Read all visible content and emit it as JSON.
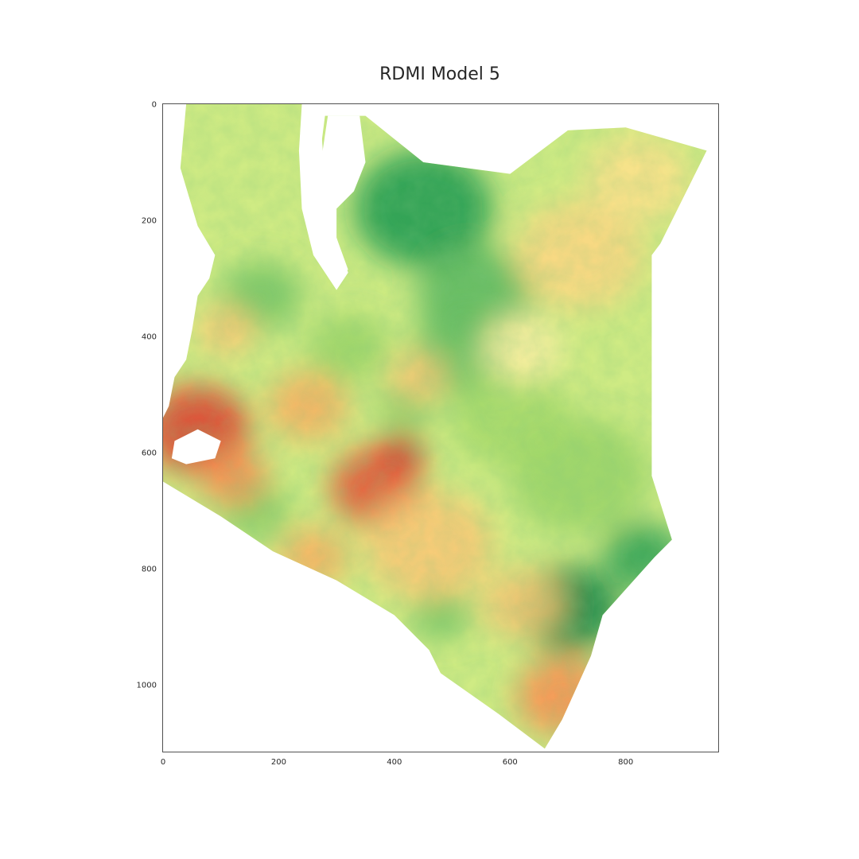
{
  "chart_data": {
    "type": "heatmap",
    "title": "RDMI Model 5",
    "xlabel": "",
    "ylabel": "",
    "xlim": [
      0,
      960
    ],
    "ylim": [
      1115,
      0
    ],
    "x_ticks": [
      0,
      200,
      400,
      600,
      800
    ],
    "y_ticks": [
      0,
      200,
      400,
      600,
      800,
      1000
    ],
    "grid": false,
    "colormap": "RdYlGn",
    "colormap_stops": [
      "#a50026",
      "#d73027",
      "#f46d43",
      "#fdae61",
      "#fee08b",
      "#ffffbf",
      "#d9ef8b",
      "#a6d96a",
      "#66bd63",
      "#1a9850",
      "#006837"
    ],
    "region_outline": [
      [
        0,
        540
      ],
      [
        10,
        520
      ],
      [
        20,
        470
      ],
      [
        40,
        440
      ],
      [
        50,
        390
      ],
      [
        60,
        330
      ],
      [
        80,
        300
      ],
      [
        90,
        260
      ],
      [
        60,
        210
      ],
      [
        30,
        110
      ],
      [
        35,
        55
      ],
      [
        40,
        0
      ],
      [
        240,
        0
      ],
      [
        235,
        80
      ],
      [
        240,
        180
      ],
      [
        260,
        260
      ],
      [
        300,
        320
      ],
      [
        320,
        290
      ],
      [
        300,
        230
      ],
      [
        280,
        140
      ],
      [
        275,
        60
      ],
      [
        280,
        20
      ],
      [
        350,
        20
      ],
      [
        450,
        100
      ],
      [
        600,
        120
      ],
      [
        700,
        45
      ],
      [
        800,
        40
      ],
      [
        940,
        80
      ],
      [
        860,
        240
      ],
      [
        845,
        260
      ],
      [
        845,
        640
      ],
      [
        880,
        750
      ],
      [
        850,
        780
      ],
      [
        760,
        880
      ],
      [
        740,
        950
      ],
      [
        690,
        1060
      ],
      [
        660,
        1110
      ],
      [
        620,
        1080
      ],
      [
        580,
        1050
      ],
      [
        480,
        980
      ],
      [
        460,
        940
      ],
      [
        400,
        880
      ],
      [
        300,
        820
      ],
      [
        190,
        770
      ],
      [
        100,
        710
      ],
      [
        0,
        650
      ]
    ],
    "hot_spots": [
      {
        "x": 60,
        "y": 560,
        "value": 0.12,
        "r": 90
      },
      {
        "x": 120,
        "y": 640,
        "value": 0.25,
        "r": 60
      },
      {
        "x": 410,
        "y": 600,
        "value": 0.05,
        "r": 40
      },
      {
        "x": 370,
        "y": 660,
        "value": 0.15,
        "r": 80
      },
      {
        "x": 460,
        "y": 760,
        "value": 0.35,
        "r": 110
      },
      {
        "x": 620,
        "y": 860,
        "value": 0.35,
        "r": 70
      },
      {
        "x": 690,
        "y": 1020,
        "value": 0.25,
        "r": 80
      },
      {
        "x": 260,
        "y": 780,
        "value": 0.3,
        "r": 60
      },
      {
        "x": 250,
        "y": 520,
        "value": 0.3,
        "r": 70
      },
      {
        "x": 440,
        "y": 470,
        "value": 0.35,
        "r": 50
      },
      {
        "x": 110,
        "y": 390,
        "value": 0.35,
        "r": 50
      },
      {
        "x": 720,
        "y": 260,
        "value": 0.38,
        "r": 110
      },
      {
        "x": 820,
        "y": 130,
        "value": 0.4,
        "r": 90
      },
      {
        "x": 620,
        "y": 420,
        "value": 0.45,
        "r": 70
      }
    ],
    "cool_spots": [
      {
        "x": 450,
        "y": 180,
        "value": 0.9,
        "r": 120
      },
      {
        "x": 540,
        "y": 330,
        "value": 0.82,
        "r": 100
      },
      {
        "x": 520,
        "y": 430,
        "value": 0.8,
        "r": 90
      },
      {
        "x": 170,
        "y": 330,
        "value": 0.78,
        "r": 70
      },
      {
        "x": 700,
        "y": 870,
        "value": 0.95,
        "r": 90
      },
      {
        "x": 830,
        "y": 780,
        "value": 0.88,
        "r": 70
      },
      {
        "x": 160,
        "y": 700,
        "value": 0.75,
        "r": 60
      },
      {
        "x": 480,
        "y": 880,
        "value": 0.78,
        "r": 50
      },
      {
        "x": 720,
        "y": 640,
        "value": 0.72,
        "r": 120
      },
      {
        "x": 600,
        "y": 540,
        "value": 0.7,
        "r": 100
      },
      {
        "x": 420,
        "y": 520,
        "value": 0.75,
        "r": 50
      },
      {
        "x": 320,
        "y": 420,
        "value": 0.72,
        "r": 70
      }
    ],
    "water_bodies": [
      {
        "points": [
          [
            285,
            20
          ],
          [
            340,
            20
          ],
          [
            350,
            100
          ],
          [
            330,
            150
          ],
          [
            300,
            180
          ],
          [
            300,
            230
          ],
          [
            320,
            285
          ],
          [
            300,
            290
          ],
          [
            275,
            200
          ],
          [
            270,
            120
          ]
        ]
      },
      {
        "points": [
          [
            20,
            580
          ],
          [
            60,
            560
          ],
          [
            100,
            580
          ],
          [
            90,
            610
          ],
          [
            40,
            620
          ],
          [
            15,
            610
          ]
        ]
      }
    ]
  }
}
